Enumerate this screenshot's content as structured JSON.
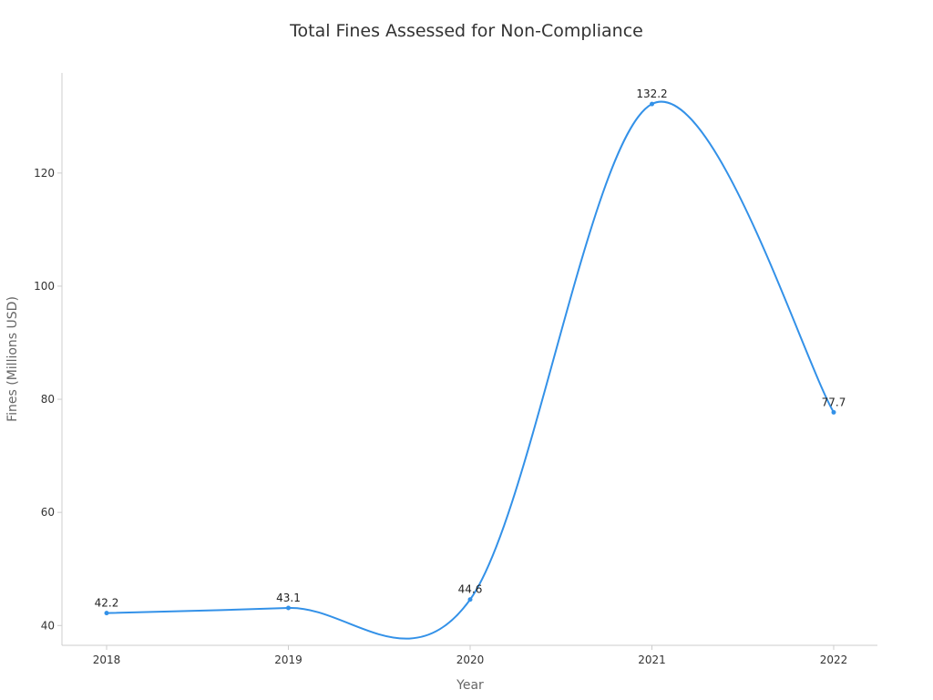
{
  "chart_data": {
    "type": "line",
    "title": "Total Fines Assessed for Non-Compliance",
    "xlabel": "Year",
    "ylabel": "Fines (Millions USD)",
    "categories": [
      "2018",
      "2019",
      "2020",
      "2021",
      "2022"
    ],
    "values": [
      42.2,
      43.1,
      44.6,
      132.2,
      77.7
    ],
    "data_labels": [
      "42.2",
      "43.1",
      "44.6",
      "132.2",
      "77.7"
    ],
    "yticks": [
      40,
      60,
      80,
      100,
      120
    ],
    "ylim": [
      36.5,
      137.7
    ],
    "grid": false,
    "smooth": true,
    "line_color": "#3391e8",
    "axis_color": "#cccccc"
  }
}
